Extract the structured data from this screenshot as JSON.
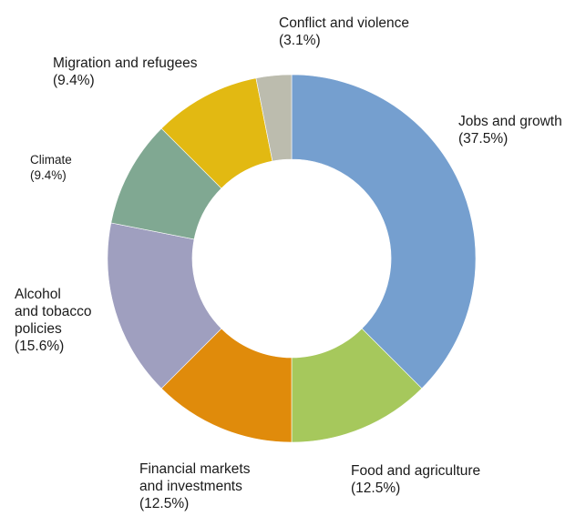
{
  "chart_data": {
    "type": "pie",
    "donut": true,
    "start_angle_deg": 0,
    "direction": "clockwise",
    "slices": [
      {
        "label_lines": [
          "Jobs and growth"
        ],
        "value_text": "(37.5%)",
        "value": 37.5,
        "color": "#759fcf"
      },
      {
        "label_lines": [
          "Food and agriculture"
        ],
        "value_text": "(12.5%)",
        "value": 12.5,
        "color": "#a6c85c"
      },
      {
        "label_lines": [
          "Financial markets",
          "and investments"
        ],
        "value_text": "(12.5%)",
        "value": 12.5,
        "color": "#e08b0b"
      },
      {
        "label_lines": [
          "Alcohol",
          "and tobacco",
          "policies"
        ],
        "value_text": "(15.6%)",
        "value": 15.6,
        "color": "#9f9fbf"
      },
      {
        "label_lines": [
          "Climate"
        ],
        "value_text": "(9.4%)",
        "value": 9.4,
        "color": "#80a892"
      },
      {
        "label_lines": [
          "Migration and refugees"
        ],
        "value_text": "(9.4%)",
        "value": 9.4,
        "color": "#e2b912"
      },
      {
        "label_lines": [
          "Conflict and violence"
        ],
        "value_text": "(3.1%)",
        "value": 3.1,
        "color": "#bcbcae"
      }
    ]
  }
}
